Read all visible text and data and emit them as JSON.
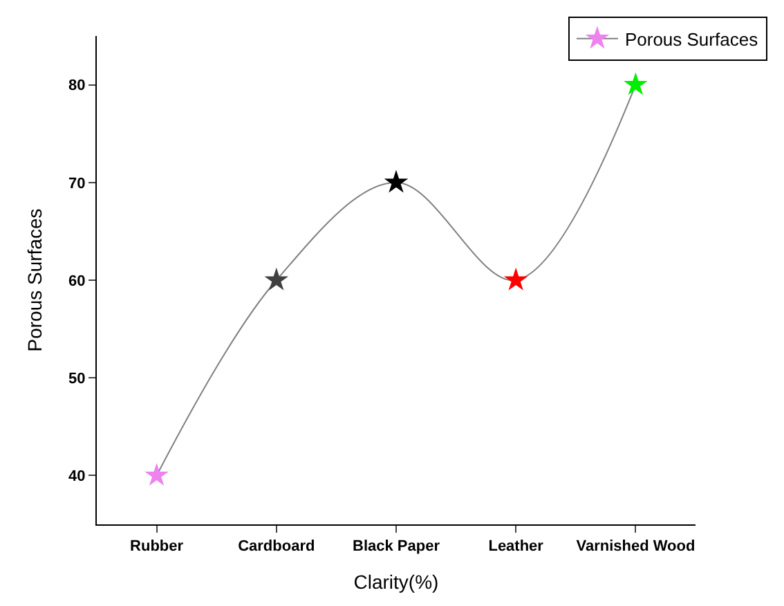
{
  "chart_data": {
    "type": "line",
    "xlabel": "Clarity(%)",
    "ylabel": "Porous Surfaces",
    "categories": [
      "Rubber",
      "Cardboard",
      "Black Paper",
      "Leather",
      "Varnished Wood"
    ],
    "series": [
      {
        "name": "Porous Surfaces",
        "color": "#808080",
        "colors": [
          "#ee82ee",
          "#404040",
          "#000000",
          "#ff0000",
          "#00ee00"
        ],
        "values": [
          40,
          60,
          70,
          60,
          80
        ]
      }
    ],
    "ylim": [
      35,
      85
    ],
    "yticks": [
      40,
      50,
      60,
      70,
      80
    ],
    "legend": "top right",
    "marker": "star",
    "line_style": "solid"
  }
}
